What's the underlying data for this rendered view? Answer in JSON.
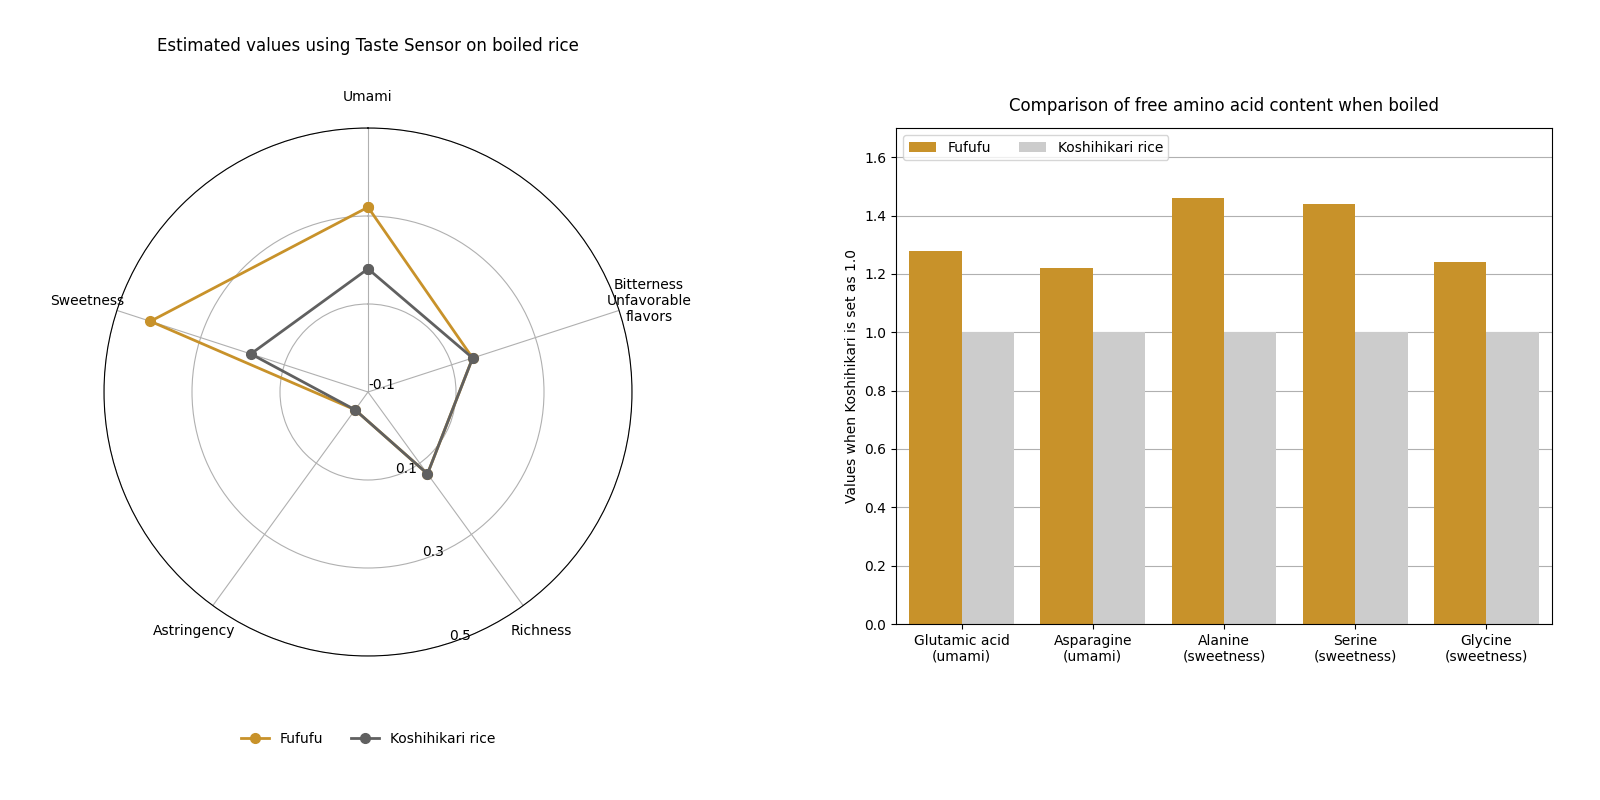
{
  "chart_data": [
    {
      "type": "radar",
      "title": "Estimated values using Taste Sensor on boiled rice",
      "categories": [
        "Umami",
        "Bitterness\nUnfavorable\nflavors",
        "Richness",
        "Astringency",
        "Sweetness"
      ],
      "series": [
        {
          "name": "Fufufu",
          "color": "#C8922A",
          "marker": "o",
          "values": [
            0.32,
            0.15,
            0.13,
            -0.05,
            0.42
          ]
        },
        {
          "name": "Koshihikari rice",
          "color": "#606060",
          "marker": "o",
          "values": [
            0.18,
            0.15,
            0.13,
            -0.05,
            0.18
          ]
        }
      ],
      "ylim": [
        -0.1,
        0.5
      ],
      "yticks": [
        -0.1,
        0.1,
        0.3,
        0.5
      ],
      "grid": true,
      "legend": "upper center"
    },
    {
      "type": "bar",
      "title": "Comparison of free amino acid content when boiled",
      "categories": [
        "Glutamic acid\n(umami)",
        "Asparagine\n(umami)",
        "Alanine\n(sweetness)",
        "Serine\n(sweetness)",
        "Glycine\n(sweetness)"
      ],
      "series": [
        {
          "name": "Fufufu",
          "color": "#C8922A",
          "values": [
            1.28,
            1.22,
            1.46,
            1.44,
            1.24
          ]
        },
        {
          "name": "Koshihikari rice",
          "color": "#CCCCCC",
          "values": [
            1.0,
            1.0,
            1.0,
            1.0,
            1.0
          ]
        }
      ],
      "y_label": "Values when Koshihikari is set as 1.0",
      "ylim": [
        0,
        1.7
      ],
      "yticks": [
        {
          "value": 0.0,
          "label": "0.0"
        },
        0.2,
        0.4,
        0.6,
        0.8,
        {
          "value": 1.0,
          "label": "1.0"
        },
        1.2,
        1.4,
        1.6
      ],
      "grid": true,
      "legend": "upper left"
    }
  ]
}
